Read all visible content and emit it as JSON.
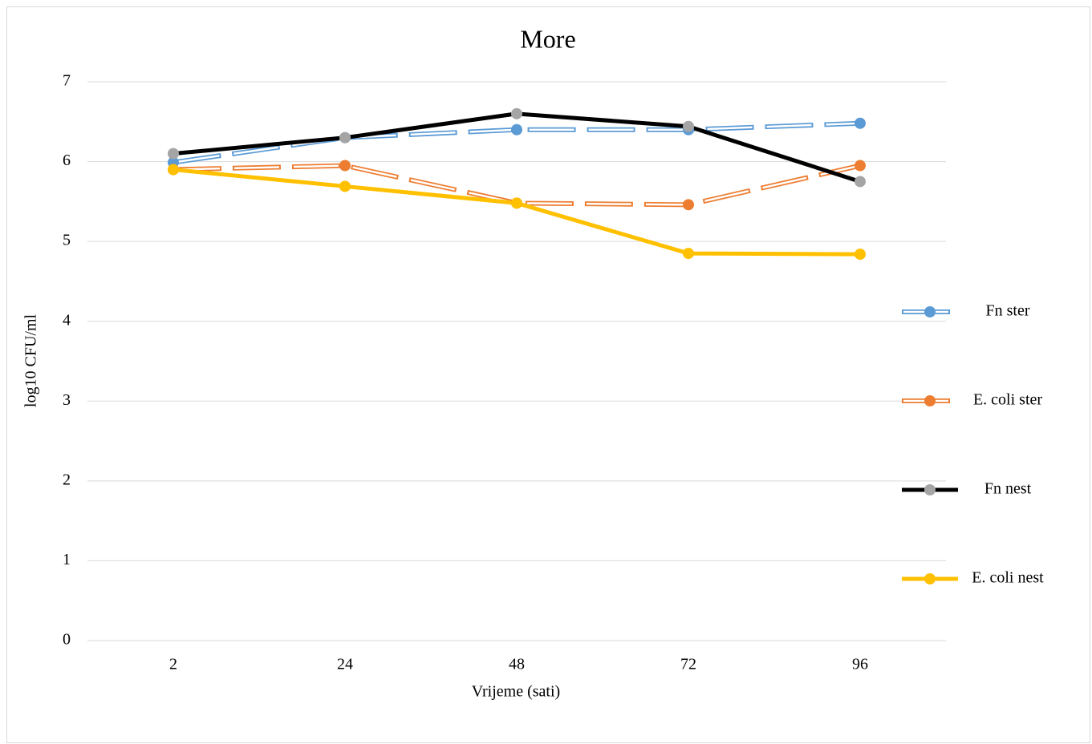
{
  "chart_data": {
    "type": "line",
    "title": "More",
    "x_label": "Vrijeme (sati)",
    "y_label": "log10 CFU/ml",
    "categories": [
      "2",
      "24",
      "48",
      "72",
      "96"
    ],
    "series": [
      {
        "name": "Fn ster",
        "color": "#5b9bd5",
        "marker_color": "#5b9bd5",
        "style": "dashed",
        "values": [
          5.99,
          6.3,
          6.4,
          6.4,
          6.48
        ]
      },
      {
        "name": "E. coli ster",
        "color": "#ed7d31",
        "marker_color": "#ed7d31",
        "style": "dashed",
        "values": [
          5.9,
          5.95,
          5.48,
          5.46,
          5.95
        ]
      },
      {
        "name": "Fn nest",
        "color": "#000000",
        "marker_color": "#a5a5a5",
        "style": "solid",
        "values": [
          6.1,
          6.3,
          6.6,
          6.44,
          5.75
        ]
      },
      {
        "name": "E. coli nest",
        "color": "#ffc000",
        "marker_color": "#ffc000",
        "style": "solid",
        "values": [
          5.9,
          5.69,
          5.48,
          4.85,
          4.84
        ]
      }
    ],
    "ylim": [
      0,
      7
    ],
    "yticks": [
      0,
      1,
      2,
      3,
      4,
      5,
      6,
      7
    ],
    "grid": true,
    "legend": "right"
  }
}
